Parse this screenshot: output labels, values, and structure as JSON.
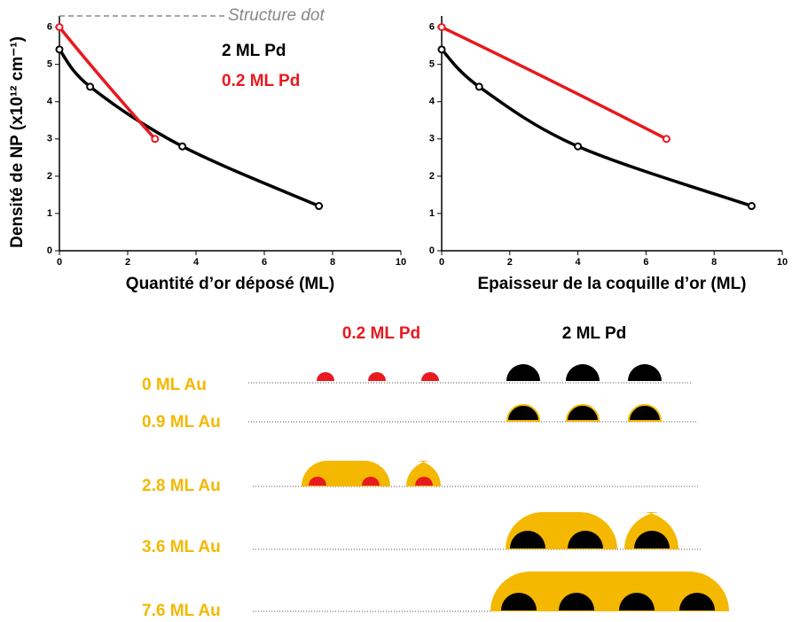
{
  "chart_data": [
    {
      "type": "line",
      "ylabel": "Densité de NP (x10¹² cm⁻¹)",
      "xlabel": "Quantité d’or déposé (ML)",
      "annotation": "Structure dot",
      "xlim": [
        0,
        10
      ],
      "ylim": [
        0,
        6.3
      ],
      "xticks": [
        0,
        2,
        4,
        6,
        8,
        10
      ],
      "yticks": [
        0,
        1,
        2,
        3,
        4,
        5,
        6
      ],
      "legend": "top-center",
      "series": [
        {
          "name": "2 ML Pd",
          "color": "#000000",
          "x": [
            0,
            0.9,
            3.6,
            7.6
          ],
          "y": [
            5.4,
            4.4,
            2.8,
            1.2
          ]
        },
        {
          "name": "0.2 ML Pd",
          "color": "#e8191f",
          "x": [
            0,
            2.8
          ],
          "y": [
            6,
            3
          ]
        }
      ]
    },
    {
      "type": "line",
      "xlabel": "Epaisseur de la coquille d’or (ML)",
      "xlim": [
        0,
        10
      ],
      "ylim": [
        0,
        6.3
      ],
      "xticks": [
        0,
        2,
        4,
        6,
        8,
        10
      ],
      "yticks": [
        0,
        1,
        2,
        3,
        4,
        5,
        6
      ],
      "series": [
        {
          "color": "#000000",
          "x": [
            0,
            1.1,
            4,
            9.1
          ],
          "y": [
            5.4,
            4.4,
            2.8,
            1.2
          ]
        },
        {
          "color": "#e8191f",
          "x": [
            0,
            6.6
          ],
          "y": [
            6,
            3
          ]
        }
      ]
    }
  ],
  "diagram": {
    "columns": [
      "0.2 ML Pd",
      "2 ML Pd"
    ],
    "rows": [
      "0   ML Au",
      "0.9 ML Au",
      "2.8 ML Au",
      "3.6 ML Au",
      "7.6 ML Au"
    ]
  }
}
